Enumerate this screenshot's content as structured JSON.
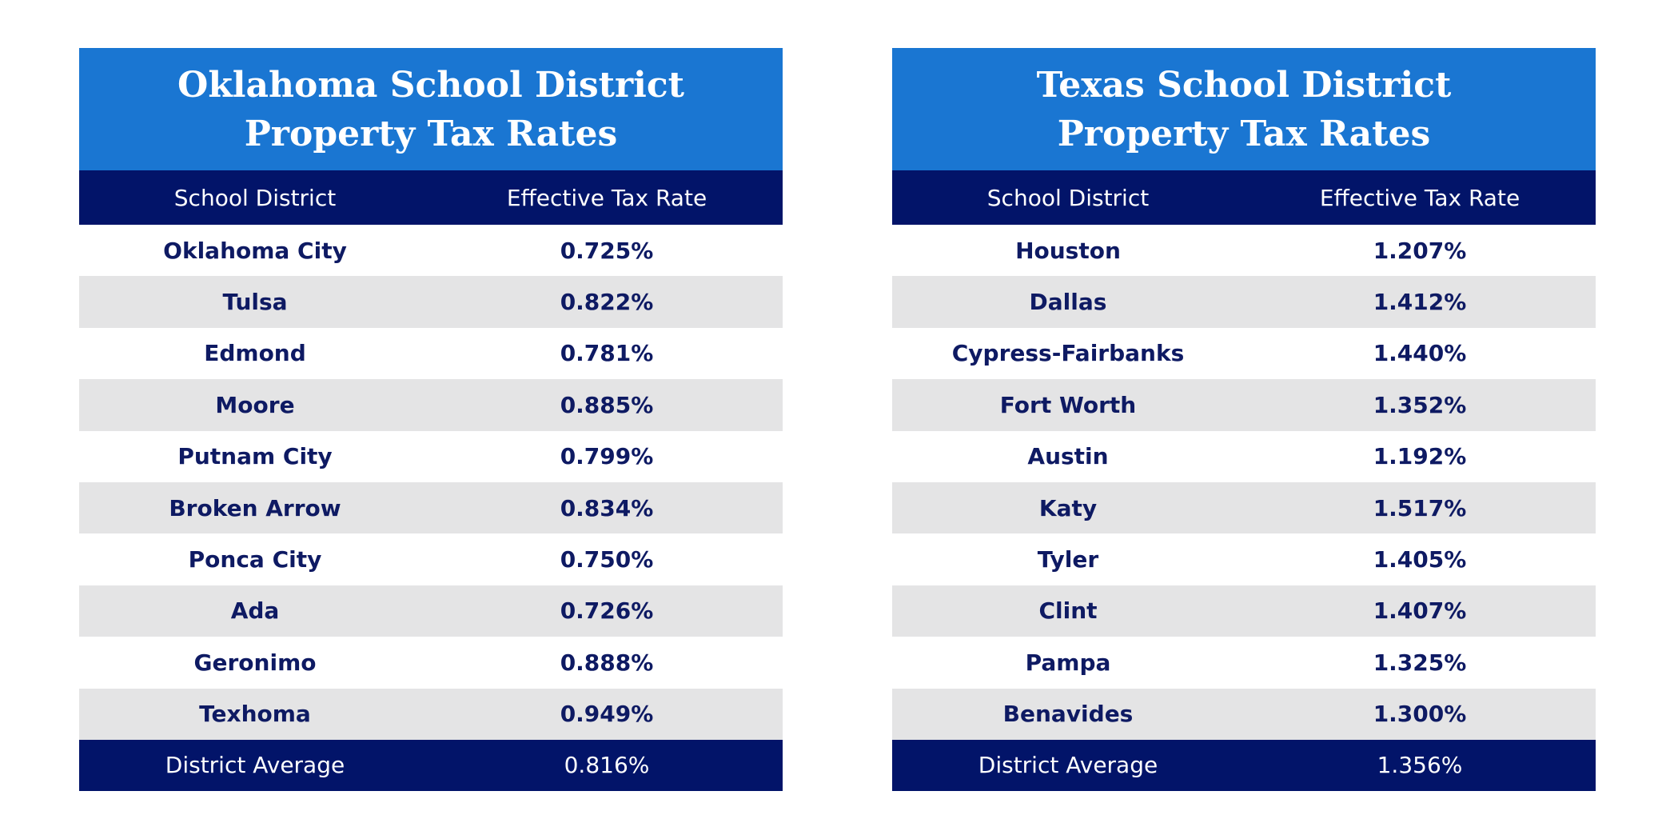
{
  "colors": {
    "title_bg": "#1a76d2",
    "header_bg": "#021469",
    "stripe_bg": "#e4e4e5",
    "text_navy": "#0e1a63"
  },
  "oklahoma": {
    "title_line1": "Oklahoma School District",
    "title_line2": "Property Tax Rates",
    "headers": {
      "district": "School District",
      "rate": "Effective Tax Rate"
    },
    "rows": [
      {
        "district": "Oklahoma City",
        "rate": "0.725%"
      },
      {
        "district": "Tulsa",
        "rate": "0.822%"
      },
      {
        "district": "Edmond",
        "rate": "0.781%"
      },
      {
        "district": "Moore",
        "rate": "0.885%"
      },
      {
        "district": "Putnam City",
        "rate": "0.799%"
      },
      {
        "district": "Broken Arrow",
        "rate": "0.834%"
      },
      {
        "district": "Ponca City",
        "rate": "0.750%"
      },
      {
        "district": "Ada",
        "rate": "0.726%"
      },
      {
        "district": "Geronimo",
        "rate": "0.888%"
      },
      {
        "district": "Texhoma",
        "rate": "0.949%"
      }
    ],
    "average": {
      "label": "District Average",
      "rate": "0.816%"
    }
  },
  "texas": {
    "title_line1": "Texas School District",
    "title_line2": "Property Tax Rates",
    "headers": {
      "district": "School District",
      "rate": "Effective Tax Rate"
    },
    "rows": [
      {
        "district": "Houston",
        "rate": "1.207%"
      },
      {
        "district": "Dallas",
        "rate": "1.412%"
      },
      {
        "district": "Cypress-Fairbanks",
        "rate": "1.440%"
      },
      {
        "district": "Fort Worth",
        "rate": "1.352%"
      },
      {
        "district": "Austin",
        "rate": "1.192%"
      },
      {
        "district": "Katy",
        "rate": "1.517%"
      },
      {
        "district": "Tyler",
        "rate": "1.405%"
      },
      {
        "district": "Clint",
        "rate": "1.407%"
      },
      {
        "district": "Pampa",
        "rate": "1.325%"
      },
      {
        "district": "Benavides",
        "rate": "1.300%"
      }
    ],
    "average": {
      "label": "District Average",
      "rate": "1.356%"
    }
  }
}
